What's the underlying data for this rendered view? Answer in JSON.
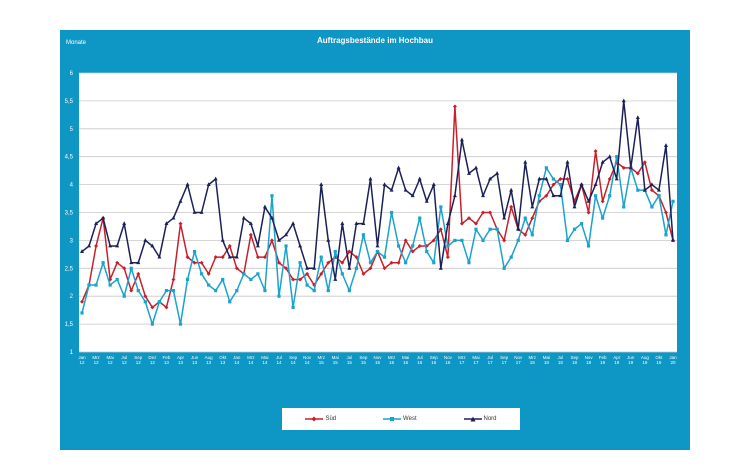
{
  "chart_data": {
    "type": "line",
    "title": "Auftragsbestände im Hochbau",
    "ylabel": "Monate",
    "xlabel": "",
    "ylim": [
      1,
      6
    ],
    "y_ticks": [
      "1",
      "1,5",
      "2",
      "2,5",
      "3",
      "3,5",
      "4",
      "4,5",
      "5",
      "5,5",
      "6"
    ],
    "grid": true,
    "legend_position": "bottom",
    "x_tick_labels": [
      [
        "Jan",
        "12"
      ],
      [
        "Mrz",
        "12"
      ],
      [
        "Mai",
        "12"
      ],
      [
        "Jul",
        "12"
      ],
      [
        "Sep",
        "12"
      ],
      [
        "Dez",
        "12"
      ],
      [
        "Feb",
        "13"
      ],
      [
        "Apr",
        "13"
      ],
      [
        "Jun",
        "13"
      ],
      [
        "Aug",
        "13"
      ],
      [
        "Okt",
        "13"
      ],
      [
        "Jan",
        "14"
      ],
      [
        "Mrz",
        "14"
      ],
      [
        "Mai",
        "14"
      ],
      [
        "Jul",
        "14"
      ],
      [
        "Sep",
        "14"
      ],
      [
        "Nov",
        "14"
      ],
      [
        "Mrz",
        "15"
      ],
      [
        "Mai",
        "15"
      ],
      [
        "Jul",
        "15"
      ],
      [
        "Sep",
        "15"
      ],
      [
        "Nov",
        "15"
      ],
      [
        "Mrz",
        "16"
      ],
      [
        "Mai",
        "16"
      ],
      [
        "Jul",
        "16"
      ],
      [
        "Sep",
        "16"
      ],
      [
        "Nov",
        "16"
      ],
      [
        "Mrz",
        "17"
      ],
      [
        "Mai",
        "17"
      ],
      [
        "Jul",
        "17"
      ],
      [
        "Sep",
        "17"
      ],
      [
        "Nov",
        "17"
      ],
      [
        "Mrz",
        "18"
      ],
      [
        "Mai",
        "18"
      ],
      [
        "Jul",
        "18"
      ],
      [
        "Sep",
        "18"
      ],
      [
        "Nov",
        "18"
      ],
      [
        "Feb",
        "19"
      ],
      [
        "Apr",
        "19"
      ],
      [
        "Jun",
        "19"
      ],
      [
        "Aug",
        "19"
      ],
      [
        "Okt",
        "19"
      ],
      [
        "Jan",
        "20"
      ]
    ],
    "series": [
      {
        "name": "Süd",
        "color": "#c8202a",
        "marker": "diamond",
        "values": [
          1.9,
          2.2,
          2.9,
          3.4,
          2.3,
          2.6,
          2.5,
          2.1,
          2.4,
          2.0,
          1.8,
          1.9,
          1.8,
          2.3,
          3.3,
          2.7,
          2.6,
          2.6,
          2.4,
          2.7,
          2.7,
          2.9,
          2.5,
          2.4,
          3.1,
          2.7,
          2.7,
          3.0,
          2.6,
          2.5,
          2.3,
          2.3,
          2.4,
          2.2,
          2.4,
          2.6,
          2.7,
          2.6,
          2.8,
          2.7,
          2.4,
          2.5,
          2.8,
          2.5,
          2.6,
          2.6,
          3.0,
          2.8,
          2.9,
          2.9,
          3.0,
          3.2,
          2.7,
          5.4,
          3.3,
          3.4,
          3.3,
          3.5,
          3.5,
          3.2,
          3.0,
          3.6,
          3.2,
          3.1,
          3.4,
          3.7,
          3.8,
          4.0,
          4.1,
          4.1,
          3.7,
          4.0,
          3.5,
          4.6,
          3.7,
          4.1,
          4.4,
          4.3,
          4.3,
          4.2,
          4.4,
          3.9,
          3.8,
          3.5,
          3.0
        ]
      },
      {
        "name": "West",
        "color": "#1aa3cc",
        "marker": "square",
        "values": [
          1.7,
          2.2,
          2.2,
          2.6,
          2.2,
          2.3,
          2.0,
          2.5,
          2.1,
          1.9,
          1.5,
          1.9,
          2.1,
          2.1,
          1.5,
          2.3,
          2.8,
          2.4,
          2.2,
          2.1,
          2.3,
          1.9,
          2.1,
          2.4,
          2.3,
          2.4,
          2.1,
          3.8,
          2.0,
          2.9,
          1.8,
          2.6,
          2.2,
          2.1,
          2.7,
          2.1,
          2.8,
          2.4,
          2.1,
          2.5,
          3.1,
          2.6,
          2.8,
          2.7,
          3.5,
          2.9,
          2.6,
          2.9,
          3.4,
          2.8,
          2.6,
          3.6,
          2.9,
          3.0,
          3.0,
          2.6,
          3.2,
          3.0,
          3.2,
          3.2,
          2.5,
          2.7,
          3.0,
          3.4,
          3.1,
          3.8,
          4.3,
          4.1,
          4.0,
          3.0,
          3.2,
          3.3,
          2.9,
          3.8,
          3.4,
          3.8,
          4.5,
          3.6,
          4.3,
          3.9,
          3.9,
          3.6,
          3.8,
          3.1,
          3.7
        ]
      },
      {
        "name": "Nord",
        "color": "#1c2059",
        "marker": "triangle",
        "values": [
          2.8,
          2.9,
          3.3,
          3.4,
          2.9,
          2.9,
          3.3,
          2.6,
          2.6,
          3.0,
          2.9,
          2.7,
          3.3,
          3.4,
          3.7,
          4.0,
          3.5,
          3.5,
          4.0,
          4.1,
          3.0,
          2.7,
          2.7,
          3.4,
          3.3,
          2.9,
          3.6,
          3.4,
          3.0,
          3.1,
          3.3,
          2.9,
          2.5,
          2.5,
          4.0,
          3.0,
          2.3,
          3.3,
          2.5,
          3.3,
          3.3,
          4.1,
          2.9,
          4.0,
          3.9,
          4.3,
          3.9,
          3.8,
          4.1,
          3.7,
          4.0,
          2.5,
          3.3,
          3.8,
          4.8,
          4.2,
          4.3,
          3.8,
          4.1,
          4.2,
          3.4,
          3.9,
          3.2,
          4.4,
          3.6,
          4.1,
          4.1,
          3.8,
          3.8,
          4.4,
          3.6,
          4.0,
          3.7,
          4.0,
          4.4,
          4.5,
          4.1,
          5.5,
          4.3,
          5.2,
          3.9,
          4.0,
          3.9,
          4.7,
          3.0
        ]
      }
    ]
  }
}
